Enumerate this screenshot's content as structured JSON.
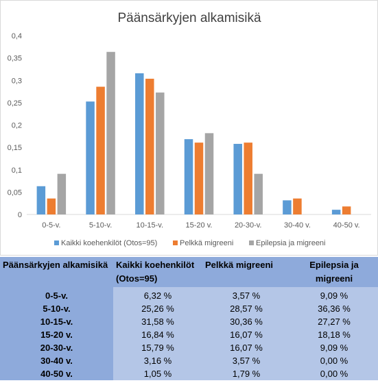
{
  "chart_data": {
    "type": "bar",
    "title": "Päänsärkyjen alkamisikä",
    "categories": [
      "0-5-v.",
      "5-10-v.",
      "10-15-v.",
      "15-20 v.",
      "20-30-v.",
      "30-40 v.",
      "40-50 v."
    ],
    "series": [
      {
        "name": "Kaikki koehenkilöt (Otos=95)",
        "color": "#5b9bd5",
        "values": [
          0.0632,
          0.2526,
          0.3158,
          0.1684,
          0.1579,
          0.0316,
          0.0105
        ]
      },
      {
        "name": "Pelkkä migreeni",
        "color": "#ed7d31",
        "values": [
          0.0357,
          0.2857,
          0.3036,
          0.1607,
          0.1607,
          0.0357,
          0.0179
        ]
      },
      {
        "name": "Epilepsia ja migreeni",
        "color": "#a5a5a5",
        "values": [
          0.0909,
          0.3636,
          0.2727,
          0.1818,
          0.0909,
          0.0,
          0.0
        ]
      }
    ],
    "ylim": [
      0,
      0.4
    ],
    "yticks": [
      "0",
      "0,05",
      "0,1",
      "0,15",
      "0,2",
      "0,25",
      "0,3",
      "0,35",
      "0,4"
    ],
    "grid": false,
    "legend_position": "bottom"
  },
  "table": {
    "headers": [
      "Päänsärkyjen alkamisikä",
      "Kaikki koehenkilöt (Otos=95)",
      "Pelkkä migreeni",
      "Epilepsia ja migreeni"
    ],
    "rows": [
      {
        "label": "0-5-v.",
        "values": [
          "6,32 %",
          "3,57 %",
          "9,09 %"
        ]
      },
      {
        "label": "5-10-v.",
        "values": [
          "25,26 %",
          "28,57 %",
          "36,36 %"
        ]
      },
      {
        "label": "10-15-v.",
        "values": [
          "31,58 %",
          "30,36 %",
          "27,27 %"
        ]
      },
      {
        "label": "15-20 v.",
        "values": [
          "16,84 %",
          "16,07 %",
          "18,18 %"
        ]
      },
      {
        "label": "20-30-v.",
        "values": [
          "15,79 %",
          "16,07 %",
          "9,09 %"
        ]
      },
      {
        "label": "30-40 v.",
        "values": [
          "3,16 %",
          "3,57 %",
          "0,00 %"
        ]
      },
      {
        "label": "40-50 v.",
        "values": [
          "1,05 %",
          "1,79 %",
          "0,00 %"
        ]
      }
    ]
  }
}
